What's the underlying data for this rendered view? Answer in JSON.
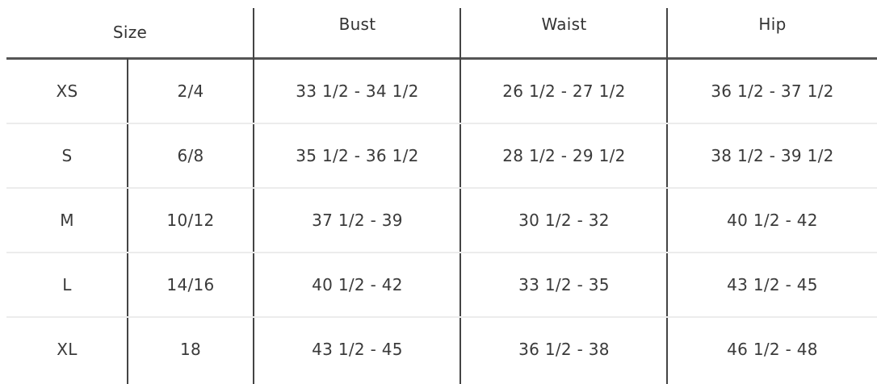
{
  "headers": {
    "size": "Size",
    "bust": "Bust",
    "waist": "Waist",
    "hip": "Hip"
  },
  "rows": [
    {
      "size": "XS",
      "number": "2/4",
      "bust": "33 1/2 - 34 1/2",
      "waist": "26 1/2 - 27 1/2",
      "hip": "36 1/2 - 37 1/2"
    },
    {
      "size": "S",
      "number": "6/8",
      "bust": "35 1/2 - 36 1/2",
      "waist": "28 1/2 - 29 1/2",
      "hip": "38 1/2 - 39 1/2"
    },
    {
      "size": "M",
      "number": "10/12",
      "bust": "37 1/2 - 39",
      "waist": "30 1/2 - 32",
      "hip": "40 1/2 - 42"
    },
    {
      "size": "L",
      "number": "14/16",
      "bust": "40 1/2 - 42",
      "waist": "33 1/2 - 35",
      "hip": "43 1/2 - 45"
    },
    {
      "size": "XL",
      "number": "18",
      "bust": "43 1/2 - 45",
      "waist": "36 1/2 - 38",
      "hip": "46 1/2 - 48"
    }
  ]
}
